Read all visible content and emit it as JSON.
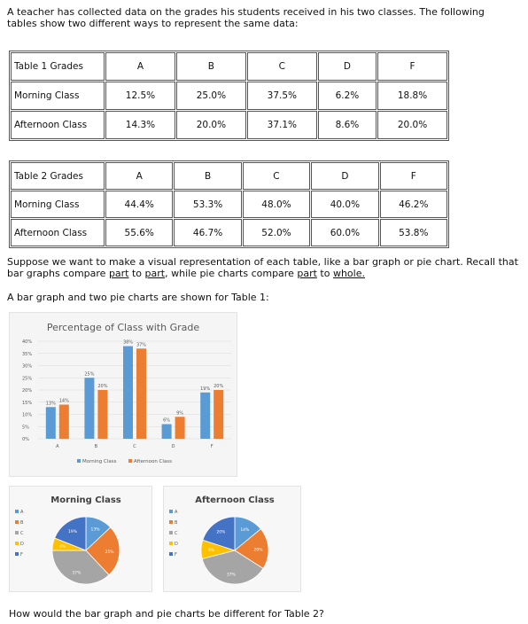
{
  "intro": "A teacher has collected data on the grades his students received in his two classes. The following tables show two different ways to represent the same data:",
  "table1": {
    "title": "Table 1 Grades",
    "headers": [
      "A",
      "B",
      "C",
      "D",
      "F"
    ],
    "rows": [
      {
        "label": "Morning Class",
        "values": [
          "12.5%",
          "25.0%",
          "37.5%",
          "6.2%",
          "18.8%"
        ]
      },
      {
        "label": "Afternoon Class",
        "values": [
          "14.3%",
          "20.0%",
          "37.1%",
          "8.6%",
          "20.0%"
        ]
      }
    ]
  },
  "table2": {
    "title": "Table 2 Grades",
    "headers": [
      "A",
      "B",
      "C",
      "D",
      "F"
    ],
    "rows": [
      {
        "label": "Morning Class",
        "values": [
          "44.4%",
          "53.3%",
          "48.0%",
          "40.0%",
          "46.2%"
        ]
      },
      {
        "label": "Afternoon Class",
        "values": [
          "55.6%",
          "46.7%",
          "52.0%",
          "60.0%",
          "53.8%"
        ]
      }
    ]
  },
  "para1": {
    "part1": "Suppose we want to make a visual representation of each table, like a bar graph or pie chart.  Recall that bar graphs compare ",
    "u1": "part",
    "part2": " to ",
    "u2": "part",
    "part3": ", while pie charts compare ",
    "u3": "part",
    "part4": " to ",
    "u4": "whole."
  },
  "para2": "A bar graph and two pie charts are shown for Table 1:",
  "question": "How would the bar graph and pie charts be different for Table 2?",
  "colors": {
    "blue": "#5b9bd5",
    "orange": "#ed7d31",
    "gray": "#a5a5a5",
    "yellow": "#ffc000",
    "darkblue": "#4472c4"
  },
  "chart_data": [
    {
      "type": "bar",
      "title": "Percentage of Class with Grade",
      "categories": [
        "A",
        "B",
        "C",
        "D",
        "F"
      ],
      "ylim": [
        0,
        40
      ],
      "yticks": [
        "0%",
        "5%",
        "10%",
        "15%",
        "20%",
        "25%",
        "30%",
        "35%",
        "40%"
      ],
      "series": [
        {
          "name": "Morning Class",
          "values": [
            13,
            25,
            38,
            6,
            19
          ],
          "labels": [
            "13%",
            "25%",
            "38%",
            "6%",
            "19%"
          ],
          "color": "#5b9bd5"
        },
        {
          "name": "Afternoon Class",
          "values": [
            14,
            20,
            37,
            9,
            20
          ],
          "labels": [
            "14%",
            "20%",
            "37%",
            "9%",
            "20%"
          ],
          "color": "#ed7d31"
        }
      ],
      "legend": "bottom",
      "grid": true
    },
    {
      "type": "pie",
      "title": "Morning Class",
      "categories": [
        "A",
        "B",
        "C",
        "D",
        "F"
      ],
      "values": [
        13,
        25,
        37,
        6,
        19
      ],
      "labels": [
        "13%",
        "25%",
        "37%",
        "6%",
        "19%"
      ],
      "colors": [
        "#5b9bd5",
        "#ed7d31",
        "#a5a5a5",
        "#ffc000",
        "#4472c4"
      ],
      "legend": "left"
    },
    {
      "type": "pie",
      "title": "Afternoon Class",
      "categories": [
        "A",
        "B",
        "C",
        "D",
        "F"
      ],
      "values": [
        14,
        20,
        37,
        9,
        20
      ],
      "labels": [
        "14%",
        "20%",
        "37%",
        "9%",
        "20%"
      ],
      "colors": [
        "#5b9bd5",
        "#ed7d31",
        "#a5a5a5",
        "#ffc000",
        "#4472c4"
      ],
      "legend": "left"
    }
  ]
}
